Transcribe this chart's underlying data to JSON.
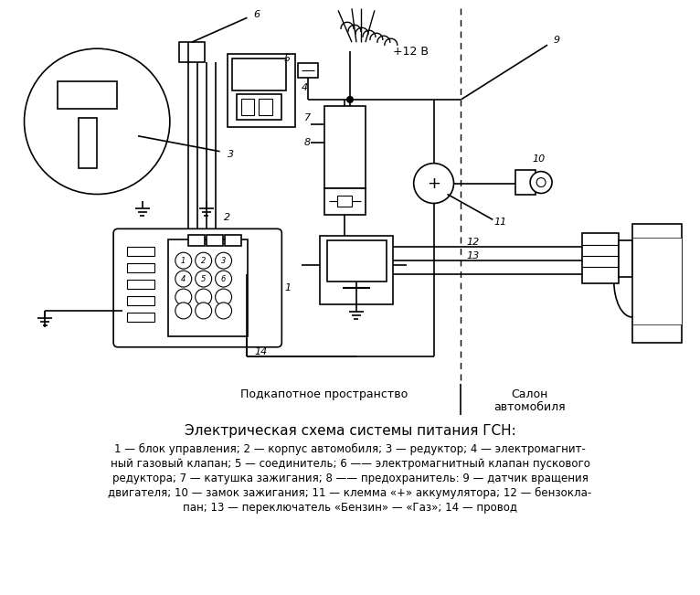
{
  "title": "Электрическая схема системы питания ГСН:",
  "caption_line1": "1 — блок управления; 2 — корпус автомобиля; 3 — редуктор; 4 — электромагнит-",
  "caption_line2": "ный газовый клапан; 5 — соединитель; 6 —— электромагнитный клапан пускового",
  "caption_line3": "редуктора; 7 — катушка зажигания; 8 —— предохранитель: 9 — датчик вращения",
  "caption_line4": "двигателя; 10 — замок зажигания; 11 — клемма «+» аккумулятора; 12 — бензокла-",
  "caption_line5": "пан; 13 — переключатель «Бензин» — «Газ»; 14 — провод",
  "label_underhood": "Подкапотное пространство",
  "label_salon1": "Салон",
  "label_salon2": "автомобиля",
  "label_plus12v": "+12 В",
  "bg_color": "#ffffff",
  "line_color": "#000000",
  "fig_width": 7.66,
  "fig_height": 6.51
}
